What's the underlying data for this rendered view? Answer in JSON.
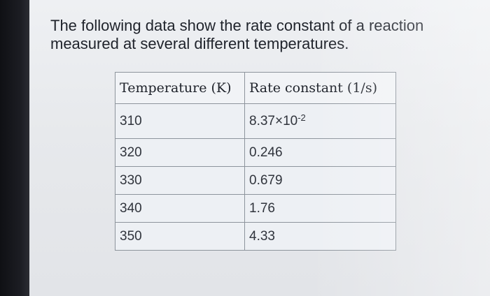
{
  "question": {
    "line1": "The following data show the rate constant of a reaction",
    "line2": "measured at several different temperatures."
  },
  "table": {
    "headers": [
      "Temperature (K)",
      "Rate constant (1/s)"
    ],
    "rows": [
      {
        "temperature": "310",
        "rate_mantissa": "8.37×10",
        "rate_exponent": "-2"
      },
      {
        "temperature": "320",
        "rate": "0.246"
      },
      {
        "temperature": "330",
        "rate": "0.679"
      },
      {
        "temperature": "340",
        "rate": "1.76"
      },
      {
        "temperature": "350",
        "rate": "4.33"
      }
    ]
  }
}
